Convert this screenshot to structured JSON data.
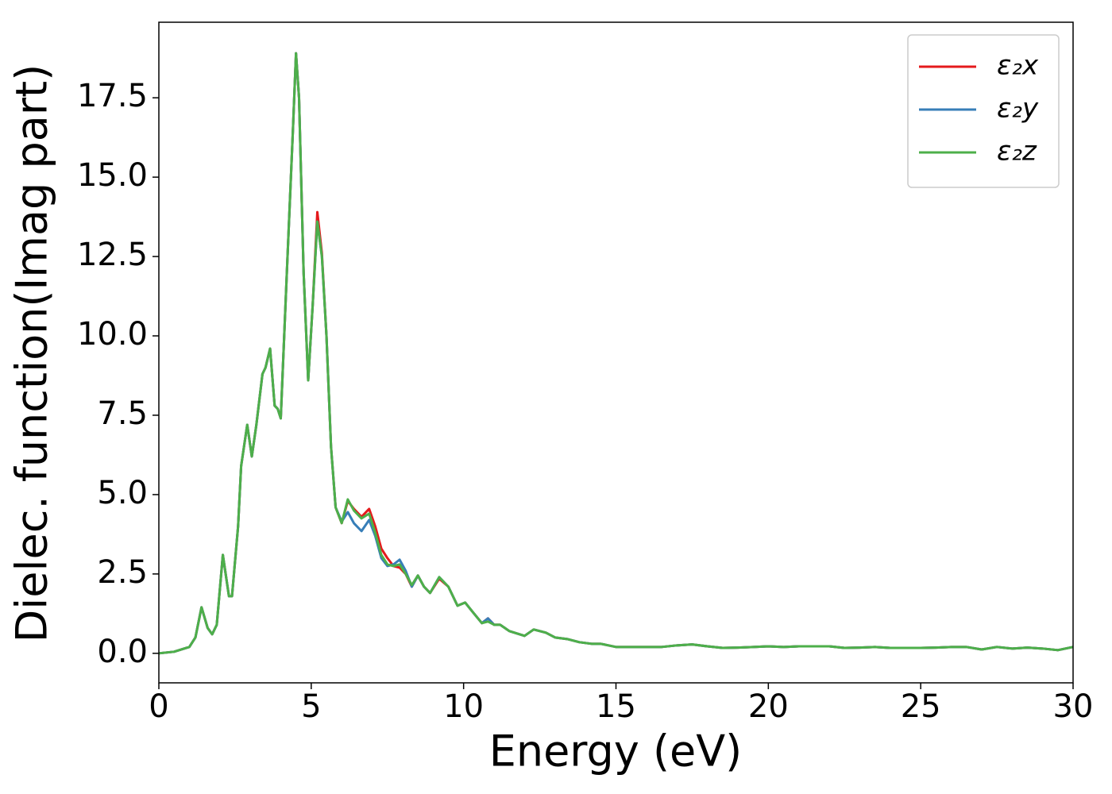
{
  "chart_data": {
    "type": "line",
    "xlabel": "Energy (eV)",
    "ylabel": "Dielec. function(Imag part)",
    "x": [
      0,
      0.5,
      1,
      1.2,
      1.4,
      1.6,
      1.75,
      1.9,
      2.1,
      2.3,
      2.4,
      2.6,
      2.7,
      2.9,
      3.05,
      3.2,
      3.4,
      3.5,
      3.65,
      3.8,
      3.9,
      4,
      4.2,
      4.4,
      4.5,
      4.6,
      4.75,
      4.9,
      5.05,
      5.2,
      5.35,
      5.5,
      5.65,
      5.8,
      6,
      6.2,
      6.4,
      6.65,
      6.9,
      7.1,
      7.3,
      7.5,
      7.7,
      7.9,
      8.1,
      8.3,
      8.5,
      8.7,
      8.9,
      9.2,
      9.5,
      9.8,
      10.05,
      10.3,
      10.6,
      10.8,
      11,
      11.2,
      11.5,
      12,
      12.3,
      12.7,
      13,
      13.4,
      13.8,
      14.2,
      14.5,
      15,
      15.5,
      16,
      16.5,
      17,
      17.5,
      18,
      18.5,
      19,
      19.5,
      20,
      20.5,
      21,
      21.5,
      22,
      22.5,
      23,
      23.5,
      24,
      24.5,
      25,
      25.5,
      26,
      26.5,
      27,
      27.5,
      28,
      28.5,
      29,
      29.5,
      30
    ],
    "series": [
      {
        "name": "ε₂x",
        "color": "#e41a1c",
        "values": [
          0,
          0.05,
          0.2,
          0.5,
          1.45,
          0.8,
          0.6,
          0.9,
          3.1,
          1.8,
          1.8,
          4.0,
          5.9,
          7.2,
          6.2,
          7.2,
          8.8,
          9.0,
          9.6,
          7.8,
          7.7,
          7.4,
          12.0,
          16.5,
          18.9,
          17.5,
          12.0,
          8.6,
          11.0,
          13.9,
          12.6,
          10.0,
          6.5,
          4.6,
          4.1,
          4.8,
          4.55,
          4.3,
          4.55,
          4.0,
          3.3,
          3.0,
          2.75,
          2.7,
          2.5,
          2.1,
          2.45,
          2.1,
          1.9,
          2.35,
          2.1,
          1.5,
          1.6,
          1.3,
          0.95,
          1.1,
          0.9,
          0.9,
          0.7,
          0.55,
          0.75,
          0.65,
          0.5,
          0.45,
          0.35,
          0.3,
          0.3,
          0.2,
          0.2,
          0.2,
          0.2,
          0.25,
          0.28,
          0.22,
          0.17,
          0.18,
          0.2,
          0.22,
          0.2,
          0.22,
          0.22,
          0.22,
          0.17,
          0.18,
          0.2,
          0.17,
          0.17,
          0.17,
          0.18,
          0.2,
          0.2,
          0.12,
          0.2,
          0.15,
          0.18,
          0.15,
          0.1,
          0.2
        ]
      },
      {
        "name": "ε₂y",
        "color": "#377eb8",
        "values": [
          0,
          0.05,
          0.2,
          0.5,
          1.45,
          0.8,
          0.6,
          0.9,
          3.1,
          1.8,
          1.8,
          4.0,
          5.9,
          7.2,
          6.2,
          7.2,
          8.8,
          9.0,
          9.6,
          7.8,
          7.7,
          7.4,
          12.0,
          16.5,
          18.9,
          17.5,
          12.0,
          8.6,
          11.0,
          13.6,
          12.5,
          10.0,
          6.5,
          4.6,
          4.15,
          4.45,
          4.1,
          3.85,
          4.2,
          3.7,
          3.0,
          2.75,
          2.8,
          2.95,
          2.6,
          2.1,
          2.45,
          2.1,
          1.9,
          2.4,
          2.1,
          1.5,
          1.6,
          1.3,
          0.95,
          1.1,
          0.9,
          0.9,
          0.7,
          0.55,
          0.75,
          0.65,
          0.5,
          0.45,
          0.35,
          0.3,
          0.3,
          0.2,
          0.2,
          0.2,
          0.2,
          0.25,
          0.28,
          0.22,
          0.17,
          0.18,
          0.2,
          0.22,
          0.2,
          0.22,
          0.22,
          0.22,
          0.17,
          0.18,
          0.2,
          0.17,
          0.17,
          0.17,
          0.18,
          0.2,
          0.2,
          0.12,
          0.2,
          0.15,
          0.18,
          0.15,
          0.1,
          0.2
        ]
      },
      {
        "name": "ε₂z",
        "color": "#4daf4a",
        "values": [
          0,
          0.05,
          0.2,
          0.5,
          1.45,
          0.8,
          0.6,
          0.9,
          3.1,
          1.8,
          1.8,
          4.0,
          5.9,
          7.2,
          6.2,
          7.2,
          8.8,
          9.0,
          9.6,
          7.8,
          7.7,
          7.4,
          12.0,
          16.5,
          18.9,
          17.5,
          12.0,
          8.6,
          11.0,
          13.6,
          12.5,
          10.0,
          6.5,
          4.6,
          4.1,
          4.85,
          4.5,
          4.25,
          4.4,
          3.8,
          3.1,
          2.8,
          2.75,
          2.8,
          2.5,
          2.15,
          2.45,
          2.1,
          1.9,
          2.4,
          2.1,
          1.5,
          1.6,
          1.3,
          0.95,
          1.0,
          0.9,
          0.9,
          0.7,
          0.55,
          0.75,
          0.65,
          0.5,
          0.45,
          0.35,
          0.3,
          0.3,
          0.2,
          0.2,
          0.2,
          0.2,
          0.25,
          0.28,
          0.22,
          0.17,
          0.18,
          0.2,
          0.22,
          0.2,
          0.22,
          0.22,
          0.22,
          0.17,
          0.18,
          0.2,
          0.17,
          0.17,
          0.17,
          0.18,
          0.2,
          0.2,
          0.12,
          0.2,
          0.15,
          0.18,
          0.15,
          0.1,
          0.2
        ]
      }
    ],
    "xlim": [
      0,
      30
    ],
    "ylim": [
      -0.93,
      19.88
    ],
    "xticks": [
      0,
      5,
      10,
      15,
      20,
      25,
      30
    ],
    "yticks": [
      {
        "value": 0,
        "label": "0.0"
      },
      2.5,
      {
        "value": 5,
        "label": "5.0"
      },
      7.5,
      {
        "value": 10,
        "label": "10.0"
      },
      12.5,
      {
        "value": 15,
        "label": "15.0"
      },
      17.5
    ],
    "legend": "upper right"
  }
}
